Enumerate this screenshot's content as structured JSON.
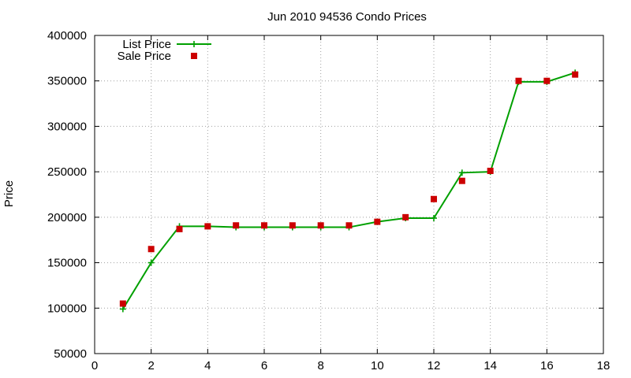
{
  "chart_data": {
    "type": "line",
    "title": "Jun 2010 94536 Condo Prices",
    "xlabel": "",
    "ylabel": "Price",
    "xlim": [
      0,
      18
    ],
    "ylim": [
      50000,
      400000
    ],
    "x_ticks": [
      0,
      2,
      4,
      6,
      8,
      10,
      12,
      14,
      16,
      18
    ],
    "y_ticks": [
      50000,
      100000,
      150000,
      200000,
      250000,
      300000,
      350000,
      400000
    ],
    "grid": true,
    "legend_position": "top-left",
    "series": [
      {
        "name": "List Price",
        "style": "line-with-plus-markers",
        "color": "#00a000",
        "x": [
          1,
          2,
          3,
          4,
          5,
          6,
          7,
          8,
          9,
          10,
          11,
          12,
          13,
          14,
          15,
          16,
          17
        ],
        "y": [
          99000,
          150000,
          190000,
          190000,
          189000,
          189000,
          189000,
          189000,
          189000,
          195000,
          199000,
          199000,
          249000,
          250000,
          349000,
          349000,
          359000
        ]
      },
      {
        "name": "Sale Price",
        "style": "square-markers",
        "color": "#cc0000",
        "x": [
          1,
          2,
          3,
          4,
          5,
          6,
          7,
          8,
          9,
          10,
          11,
          12,
          13,
          14,
          15,
          16,
          17
        ],
        "y": [
          105000,
          165000,
          187000,
          190000,
          191000,
          191000,
          191000,
          191000,
          191000,
          195000,
          200000,
          220000,
          240000,
          251000,
          350000,
          350000,
          357000
        ]
      }
    ]
  }
}
